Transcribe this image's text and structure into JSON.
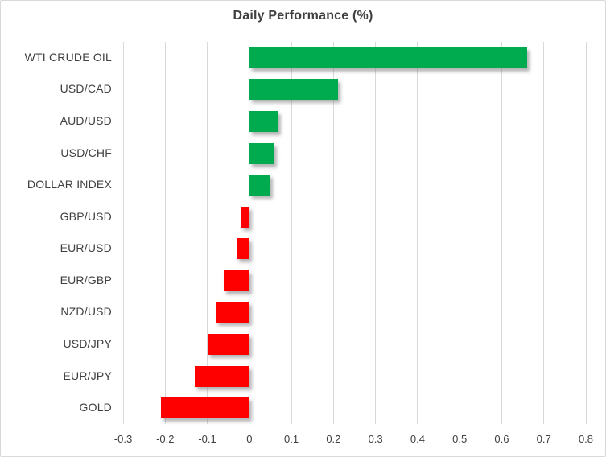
{
  "chart_data": {
    "type": "bar",
    "orientation": "horizontal",
    "title": "Daily Performance (%)",
    "categories": [
      "WTI CRUDE OIL",
      "USD/CAD",
      "AUD/USD",
      "USD/CHF",
      "DOLLAR INDEX",
      "GBP/USD",
      "EUR/USD",
      "EUR/GBP",
      "NZD/USD",
      "USD/JPY",
      "EUR/JPY",
      "GOLD"
    ],
    "values": [
      0.66,
      0.21,
      0.07,
      0.06,
      0.05,
      -0.02,
      -0.03,
      -0.06,
      -0.08,
      -0.1,
      -0.13,
      -0.21
    ],
    "xlabel": "",
    "ylabel": "",
    "xlim": [
      -0.3,
      0.8
    ],
    "x_ticks": [
      -0.3,
      -0.2,
      -0.1,
      0,
      0.1,
      0.2,
      0.3,
      0.4,
      0.5,
      0.6,
      0.7,
      0.8
    ],
    "x_tick_labels": [
      "-0.3",
      "-0.2",
      "-0.1",
      "0",
      "0.1",
      "0.2",
      "0.3",
      "0.4",
      "0.5",
      "0.6",
      "0.7",
      "0.8"
    ],
    "grid": true,
    "legend": "none",
    "colors": {
      "positive": "#00AB50",
      "negative": "#FF0000",
      "gridline": "#D9D9D9",
      "text": "#404040",
      "title": "#404040",
      "border": "#D9D9D9",
      "background": "#FFFFFF"
    }
  }
}
